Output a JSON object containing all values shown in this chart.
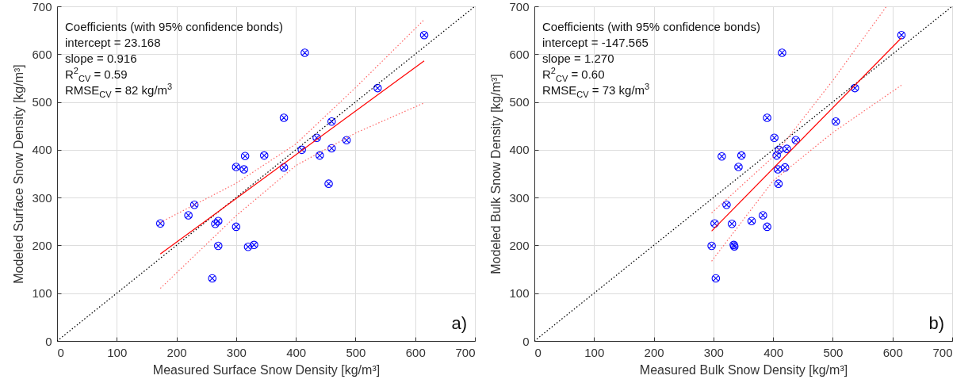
{
  "chart_data": [
    {
      "type": "scatter",
      "title": "a)",
      "xlabel": "Measured Surface Snow Density [kg/m³]",
      "ylabel": "Modeled Surface Snow Density [kg/m³]",
      "annotations": [
        "Coefficients (with 95% confidence bonds)",
        "intercept = 23.168",
        "slope = 0.916",
        "R$^{2}$$_{CV}$ = 0.59",
        "RMSE$_{CV}$ = 82 kg/m$^{3}$"
      ],
      "xlim": [
        0,
        700
      ],
      "ylim": [
        0,
        700
      ],
      "xticks": [
        0,
        100,
        200,
        300,
        400,
        500,
        600,
        700
      ],
      "yticks": [
        0,
        100,
        200,
        300,
        400,
        500,
        600,
        700
      ],
      "grid": true,
      "series": [
        {
          "type": "scatter",
          "marker": "cross",
          "color": "#0000ff",
          "x": [
            173,
            220,
            230,
            265,
            270,
            270,
            260,
            300,
            300,
            313,
            315,
            320,
            330,
            347,
            380,
            380,
            410,
            415,
            435,
            440,
            455,
            460,
            460,
            485,
            537,
            615
          ],
          "values": [
            246,
            263,
            285,
            245,
            251,
            199,
            131,
            364,
            239,
            359,
            387,
            197,
            201,
            388,
            467,
            363,
            400,
            603,
            425,
            388,
            329,
            459,
            403,
            420,
            529,
            640
          ]
        },
        {
          "type": "line",
          "color": "#000000",
          "line_style": "dotted",
          "x": [
            0,
            700
          ],
          "values": [
            0,
            700
          ]
        },
        {
          "type": "line",
          "color": "#ff0000",
          "line_style": "solid",
          "x": [
            173,
            615
          ],
          "values": [
            182,
            586
          ]
        },
        {
          "type": "line",
          "color": "#ff6666",
          "line_style": "dotted",
          "x": [
            173,
            300,
            400,
            500,
            615
          ],
          "values": [
            248,
            330,
            412,
            530,
            672
          ]
        },
        {
          "type": "line",
          "color": "#ff6666",
          "line_style": "dotted",
          "x": [
            173,
            300,
            400,
            500,
            615
          ],
          "values": [
            110,
            262,
            367,
            435,
            498
          ]
        }
      ]
    },
    {
      "type": "scatter",
      "title": "b)",
      "xlabel": "Measured Bulk Snow Density [kg/m³]",
      "ylabel": "Modeled Bulk Snow Density [kg/m³]",
      "annotations": [
        "Coefficients (with 95% confidence bonds)",
        "intercept = -147.565",
        "slope = 1.270",
        "R$^{2}$$_{CV}$ = 0.60",
        "RMSE$_{CV}$ = 73 kg/m$^{3}$"
      ],
      "xlim": [
        0,
        700
      ],
      "ylim": [
        0,
        700
      ],
      "xticks": [
        0,
        100,
        200,
        300,
        400,
        500,
        600,
        700
      ],
      "yticks": [
        0,
        100,
        200,
        300,
        400,
        500,
        600,
        700
      ],
      "grid": true,
      "series": [
        {
          "type": "scatter",
          "marker": "cross",
          "color": "#0000ff",
          "x": [
            297,
            302,
            304,
            314,
            322,
            331,
            334,
            335,
            342,
            347,
            364,
            383,
            390,
            390,
            402,
            406,
            408,
            409,
            410,
            415,
            420,
            423,
            438,
            505,
            537,
            615
          ],
          "values": [
            199,
            246,
            131,
            386,
            285,
            245,
            201,
            198,
            364,
            388,
            251,
            263,
            467,
            239,
            425,
            388,
            359,
            329,
            400,
            603,
            363,
            402,
            420,
            459,
            529,
            640
          ]
        },
        {
          "type": "line",
          "color": "#000000",
          "line_style": "dotted",
          "x": [
            0,
            700
          ],
          "values": [
            0,
            700
          ]
        },
        {
          "type": "line",
          "color": "#ff0000",
          "line_style": "solid",
          "x": [
            297,
            615
          ],
          "values": [
            230,
            634
          ]
        },
        {
          "type": "line",
          "color": "#ff6666",
          "line_style": "dotted",
          "x": [
            297,
            400,
            500,
            590
          ],
          "values": [
            268,
            385,
            545,
            700
          ]
        },
        {
          "type": "line",
          "color": "#ff6666",
          "line_style": "dotted",
          "x": [
            297,
            400,
            500,
            615
          ],
          "values": [
            167,
            335,
            436,
            535
          ]
        }
      ]
    }
  ]
}
